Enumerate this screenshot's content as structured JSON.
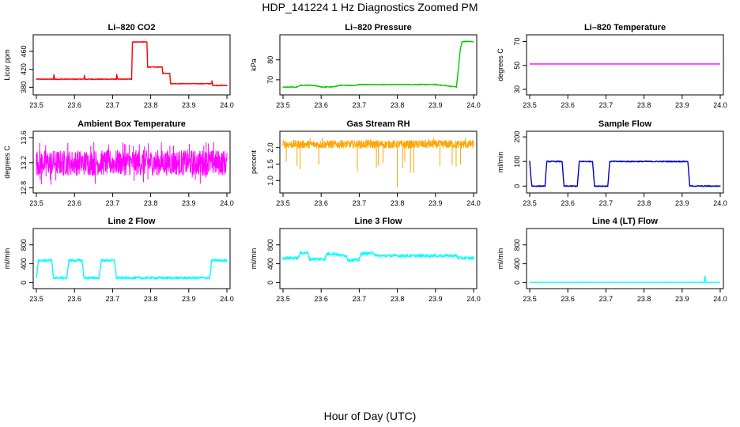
{
  "title": "HDP_141224  1 Hz Diagnostics Zoomed PM",
  "xlabel": "Hour of Day (UTC)",
  "chart_data": [
    {
      "type": "line",
      "title": "Li–820 CO2",
      "ylabel": "Licor ppm",
      "color": "#ff0000",
      "xlim": [
        23.5,
        24.0
      ],
      "ylim": [
        370,
        490
      ],
      "xticks": [
        "23.5",
        "23.6",
        "23.7",
        "23.8",
        "23.9",
        "24.0"
      ],
      "yticks": [
        {
          "v": 380,
          "label": "380"
        },
        {
          "v": 420,
          "label": "420"
        },
        {
          "v": 460,
          "label": "460"
        }
      ],
      "x": [
        23.5,
        23.545,
        23.546,
        23.548,
        23.549,
        23.625,
        23.626,
        23.628,
        23.629,
        23.71,
        23.711,
        23.713,
        23.714,
        23.75,
        23.752,
        23.79,
        23.792,
        23.83,
        23.832,
        23.85,
        23.852,
        23.96,
        23.961,
        23.962,
        23.963,
        24.0
      ],
      "y": [
        398,
        398,
        408,
        398,
        398,
        398,
        406,
        398,
        398,
        398,
        408,
        398,
        398,
        398,
        481,
        481,
        425,
        425,
        411,
        411,
        388,
        388,
        394,
        388,
        384,
        384
      ],
      "noise": 0.8
    },
    {
      "type": "line",
      "title": "Li–820 Pressure",
      "ylabel": "kPa",
      "color": "#00cc00",
      "xlim": [
        23.5,
        24.0
      ],
      "ylim": [
        64,
        91
      ],
      "xticks": [
        "23.5",
        "23.6",
        "23.7",
        "23.8",
        "23.9",
        "24.0"
      ],
      "yticks": [
        {
          "v": 70,
          "label": "70"
        },
        {
          "v": 80,
          "label": "80"
        }
      ],
      "x": [
        23.5,
        23.535,
        23.545,
        23.58,
        23.6,
        23.63,
        23.65,
        23.69,
        23.7,
        23.9,
        23.955,
        23.96,
        23.965,
        23.97,
        24.0
      ],
      "y": [
        66.3,
        66.3,
        67.2,
        67.2,
        66.4,
        66.4,
        67.2,
        67.2,
        67.6,
        67.6,
        66.4,
        75,
        85,
        89.2,
        89.2
      ],
      "noise": 0.2
    },
    {
      "type": "line",
      "title": "Li–820 Temperature",
      "ylabel": "degrees C",
      "color": "#ff00ff",
      "xlim": [
        23.5,
        24.0
      ],
      "ylim": [
        28,
        73
      ],
      "xticks": [
        "23.5",
        "23.6",
        "23.7",
        "23.8",
        "23.9",
        "24.0"
      ],
      "yticks": [
        {
          "v": 30,
          "label": "30"
        },
        {
          "v": 50,
          "label": "50"
        },
        {
          "v": 70,
          "label": "70"
        }
      ],
      "x": [
        23.5,
        24.0
      ],
      "y": [
        51.2,
        51.2
      ],
      "noise": 0
    },
    {
      "type": "line",
      "title": "Ambient Box Temperature",
      "ylabel": "degrees C",
      "color": "#ff00ff",
      "xlim": [
        23.5,
        24.0
      ],
      "ylim": [
        12.77,
        13.65
      ],
      "xticks": [
        "23.5",
        "23.6",
        "23.7",
        "23.8",
        "23.9",
        "24.0"
      ],
      "yticks": [
        {
          "v": 12.8,
          "label": "12.8"
        },
        {
          "v": 13.2,
          "label": "13.2"
        },
        {
          "v": 13.6,
          "label": "13.6"
        }
      ],
      "x": [
        23.5,
        24.0
      ],
      "y": [
        13.2,
        13.2
      ],
      "noise": 0.2,
      "spikes": 40,
      "spike_low": 12.85,
      "spike_high": 13.55,
      "dense": true
    },
    {
      "type": "line",
      "title": "Gas Stream RH",
      "ylabel": "percent",
      "color": "#ffa500",
      "xlim": [
        23.5,
        24.0
      ],
      "ylim": [
        0.72,
        2.4
      ],
      "xticks": [
        "23.5",
        "23.6",
        "23.7",
        "23.8",
        "23.9",
        "24.0"
      ],
      "yticks": [
        {
          "v": 1.0,
          "label": "1.0"
        },
        {
          "v": 1.5,
          "label": "1.5"
        },
        {
          "v": 2.0,
          "label": "2.0"
        }
      ],
      "x": [
        23.5,
        24.0
      ],
      "y": [
        2.1,
        2.1
      ],
      "noise": 0.12,
      "spikes": 30,
      "spike_low": 1.1,
      "spike_high": 2.3,
      "dense": true,
      "deep_dip": [
        23.8,
        0.8
      ]
    },
    {
      "type": "line",
      "title": "Sample Flow",
      "ylabel": "ml/min",
      "color": "#0000cc",
      "xlim": [
        23.5,
        24.0
      ],
      "ylim": [
        -15,
        210
      ],
      "xticks": [
        "23.5",
        "23.6",
        "23.7",
        "23.8",
        "23.9",
        "24.0"
      ],
      "yticks": [
        {
          "v": 0,
          "label": "0"
        },
        {
          "v": 100,
          "label": "100"
        },
        {
          "v": 200,
          "label": "200"
        }
      ],
      "x": [
        23.5,
        23.503,
        23.506,
        23.54,
        23.545,
        23.585,
        23.59,
        23.625,
        23.63,
        23.665,
        23.67,
        23.705,
        23.71,
        23.915,
        23.92,
        24.0
      ],
      "y": [
        100,
        40,
        0,
        0,
        100,
        100,
        0,
        0,
        100,
        100,
        0,
        0,
        100,
        100,
        0,
        0
      ],
      "noise": 2
    },
    {
      "type": "line",
      "title": "Line 2 Flow",
      "ylabel": "ml/min",
      "color": "#00ffff",
      "xlim": [
        23.5,
        24.0
      ],
      "ylim": [
        -60,
        1080
      ],
      "xticks": [
        "23.5",
        "23.6",
        "23.7",
        "23.8",
        "23.9",
        "24.0"
      ],
      "yticks": [
        {
          "v": 0,
          "label": "0"
        },
        {
          "v": 400,
          "label": "400"
        },
        {
          "v": 800,
          "label": "800"
        }
      ],
      "x": [
        23.5,
        23.503,
        23.505,
        23.54,
        23.545,
        23.58,
        23.585,
        23.62,
        23.625,
        23.665,
        23.67,
        23.705,
        23.71,
        23.955,
        23.96,
        24.0
      ],
      "y": [
        100,
        300,
        470,
        470,
        100,
        100,
        470,
        470,
        100,
        100,
        470,
        470,
        100,
        100,
        470,
        470
      ],
      "noise": 25
    },
    {
      "type": "line",
      "title": "Line 3 Flow",
      "ylabel": "ml/min",
      "color": "#00ffff",
      "xlim": [
        23.5,
        24.0
      ],
      "ylim": [
        -60,
        1080
      ],
      "xticks": [
        "23.5",
        "23.6",
        "23.7",
        "23.8",
        "23.9",
        "24.0"
      ],
      "yticks": [
        {
          "v": 0,
          "label": "0"
        },
        {
          "v": 400,
          "label": "400"
        },
        {
          "v": 800,
          "label": "800"
        }
      ],
      "x": [
        23.5,
        23.54,
        23.545,
        23.565,
        23.57,
        23.61,
        23.615,
        23.64,
        23.645,
        23.665,
        23.67,
        23.7,
        23.705,
        23.74,
        23.745,
        23.955,
        23.96,
        24.0
      ],
      "y": [
        520,
        520,
        630,
        630,
        500,
        500,
        610,
        610,
        580,
        580,
        480,
        480,
        620,
        620,
        570,
        570,
        520,
        520
      ],
      "noise": 30
    },
    {
      "type": "line",
      "title": "Line 4 (LT) Flow",
      "ylabel": "ml/min",
      "color": "#00ffff",
      "xlim": [
        23.5,
        24.0
      ],
      "ylim": [
        -60,
        1080
      ],
      "xticks": [
        "23.5",
        "23.6",
        "23.7",
        "23.8",
        "23.9",
        "24.0"
      ],
      "yticks": [
        {
          "v": 0,
          "label": "0"
        },
        {
          "v": 400,
          "label": "400"
        },
        {
          "v": 800,
          "label": "800"
        }
      ],
      "x": [
        23.5,
        23.958,
        23.96,
        23.962,
        24.0
      ],
      "y": [
        5,
        5,
        140,
        5,
        5
      ],
      "noise": 3
    }
  ]
}
